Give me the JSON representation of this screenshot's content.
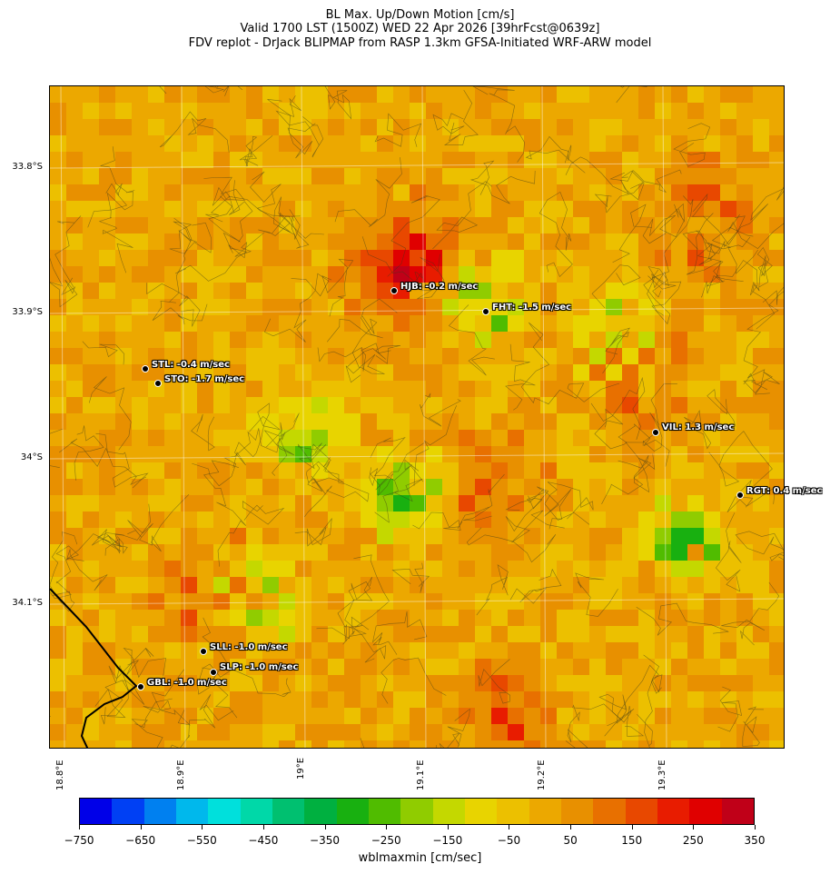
{
  "title": {
    "line1": "BL Max. Up/Down Motion [cm/s]",
    "line2": "Valid 1700 LST (1500Z) WED 22 Apr 2026 [39hrFcst@0639z]",
    "line3": "FDV replot - DrJack BLIPMAP from RASP 1.3km GFSA-Initiated WRF-ARW model"
  },
  "map": {
    "lat_labels": [
      "33.8°S",
      "33.9°S",
      "34°S",
      "34.1°S"
    ],
    "lon_labels": [
      "18.8°E",
      "18.9°E",
      "19°E",
      "19.1°E",
      "19.2°E",
      "19.3°E"
    ],
    "stations": [
      {
        "id": "HJB",
        "text": "HJB: -0.2 m/sec"
      },
      {
        "id": "FHT",
        "text": "FHT: -1.5 m/sec"
      },
      {
        "id": "STL",
        "text": "STL: -0.4 m/sec"
      },
      {
        "id": "STO",
        "text": "STO: -1.7 m/sec"
      },
      {
        "id": "VIL",
        "text": "VIL: 1.3 m/sec"
      },
      {
        "id": "RGT",
        "text": "RGT: 0.4 m/sec"
      },
      {
        "id": "SLL",
        "text": "SLL: -1.0 m/sec"
      },
      {
        "id": "SLP",
        "text": "SLP: -1.0 m/sec"
      },
      {
        "id": "GBL",
        "text": "GBL: -1.0 m/sec"
      }
    ]
  },
  "colorbar": {
    "label": "wblmaxmin [cm/sec]",
    "ticks": [
      "−750",
      "−650",
      "−550",
      "−450",
      "−350",
      "−250",
      "−150",
      "−50",
      "50",
      "150",
      "250",
      "350"
    ],
    "colors": [
      "#0000e8",
      "#0040f4",
      "#0080f0",
      "#00b8ec",
      "#00e0dc",
      "#00d8a8",
      "#00c070",
      "#00b040",
      "#18b010",
      "#50bc00",
      "#90cc00",
      "#c4d800",
      "#e8d400",
      "#ecc000",
      "#eca800",
      "#e89000",
      "#e87000",
      "#e84800",
      "#e81c00",
      "#e00000",
      "#c00018"
    ]
  }
}
